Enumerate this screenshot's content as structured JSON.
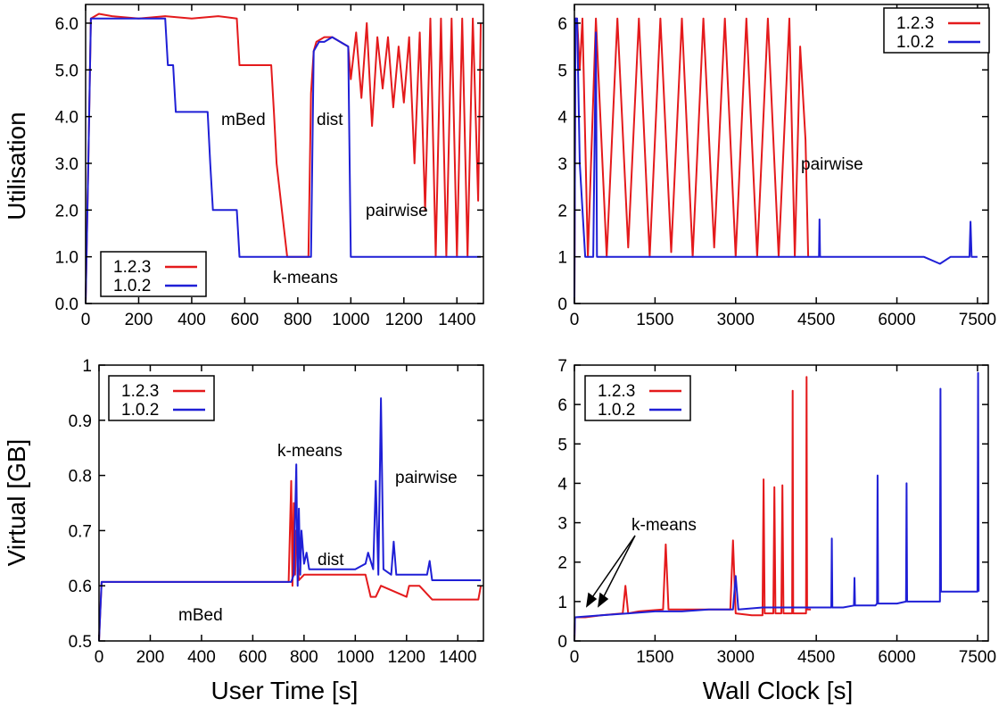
{
  "chart_data": [
    {
      "type": "line",
      "xlim": [
        0,
        1500
      ],
      "ylim": [
        0,
        6.4
      ],
      "xticks": [
        "0",
        "200",
        "400",
        "600",
        "800",
        "1000",
        "1200",
        "1400"
      ],
      "xtick_values": [
        0,
        200,
        400,
        600,
        800,
        1000,
        1200,
        1400
      ],
      "yticks": [
        "0.0",
        "1.0",
        "2.0",
        "3.0",
        "4.0",
        "5.0",
        "6.0"
      ],
      "ytick_values": [
        0,
        1,
        2,
        3,
        4,
        5,
        6
      ],
      "xlabel": "",
      "ylabel": "Utilisation",
      "legend": "bottom-left",
      "series": [
        {
          "name": "1.2.3",
          "color": "#e41a1c",
          "x": [
            0,
            10,
            20,
            50,
            100,
            200,
            300,
            400,
            500,
            570,
            580,
            650,
            700,
            710,
            720,
            740,
            760,
            780,
            800,
            820,
            840,
            850,
            860,
            870,
            900,
            930,
            960,
            990,
            1000,
            1020,
            1040,
            1060,
            1080,
            1100,
            1120,
            1140,
            1160,
            1180,
            1200,
            1220,
            1240,
            1260,
            1280,
            1300,
            1320,
            1340,
            1360,
            1380,
            1400,
            1420,
            1440,
            1460,
            1480,
            1490
          ],
          "y": [
            0,
            3,
            6.1,
            6.2,
            6.15,
            6.1,
            6.15,
            6.1,
            6.15,
            6.1,
            5.1,
            5.1,
            5.1,
            4.1,
            3.0,
            2.0,
            1.0,
            1.0,
            1.0,
            1.0,
            1.0,
            4.5,
            5.4,
            5.6,
            5.7,
            5.7,
            5.6,
            5.5,
            4.8,
            5.8,
            4.4,
            6.0,
            3.8,
            5.7,
            4.6,
            5.7,
            4.2,
            5.5,
            4.3,
            5.7,
            3.0,
            5.8,
            2.0,
            6.1,
            1.0,
            6.1,
            1.0,
            6.1,
            1.0,
            6.1,
            1.0,
            6.1,
            2.2,
            6.0
          ]
        },
        {
          "name": "1.0.2",
          "color": "#1f1fd6",
          "x": [
            0,
            10,
            20,
            50,
            100,
            200,
            300,
            310,
            330,
            340,
            460,
            470,
            480,
            570,
            580,
            700,
            800,
            850,
            860,
            880,
            900,
            930,
            960,
            990,
            1000,
            1100,
            1200,
            1300,
            1400,
            1490
          ],
          "y": [
            0,
            3,
            6.1,
            6.1,
            6.1,
            6.1,
            6.1,
            5.1,
            5.1,
            4.1,
            4.1,
            3.0,
            2.0,
            2.0,
            1.0,
            1.0,
            1.0,
            1.0,
            5.4,
            5.6,
            5.6,
            5.7,
            5.6,
            5.5,
            1.0,
            1.0,
            1.0,
            1.0,
            1.0,
            1.0
          ]
        }
      ],
      "annotations": [
        "mBed",
        "dist",
        "pairwise",
        "k-means"
      ]
    },
    {
      "type": "line",
      "xlim": [
        0,
        7700
      ],
      "ylim": [
        0,
        6.4
      ],
      "xticks": [
        "0",
        "1500",
        "3000",
        "4500",
        "6000",
        "7500"
      ],
      "xtick_values": [
        0,
        1500,
        3000,
        4500,
        6000,
        7500
      ],
      "yticks": [
        "0",
        "1",
        "2",
        "3",
        "4",
        "5",
        "6"
      ],
      "ytick_values": [
        0,
        1,
        2,
        3,
        4,
        5,
        6
      ],
      "xlabel": "",
      "ylabel": "",
      "legend": "top-right",
      "series": [
        {
          "name": "1.2.3",
          "color": "#e41a1c",
          "x": [
            0,
            20,
            50,
            100,
            150,
            250,
            400,
            600,
            800,
            1000,
            1200,
            1400,
            1600,
            1800,
            2000,
            2200,
            2400,
            2600,
            2800,
            3000,
            3200,
            3400,
            3600,
            3800,
            4000,
            4100,
            4200,
            4300,
            4350
          ],
          "y": [
            0,
            6.1,
            6.1,
            5.0,
            6.1,
            1.0,
            6.1,
            1.0,
            6.1,
            1.2,
            6.1,
            1.0,
            6.1,
            1.1,
            6.1,
            1.0,
            6.1,
            1.2,
            6.1,
            1.0,
            6.1,
            1.0,
            6.1,
            1.0,
            6.1,
            1.0,
            5.5,
            3.5,
            1.0
          ]
        },
        {
          "name": "1.0.2",
          "color": "#1f1fd6",
          "x": [
            0,
            20,
            50,
            100,
            200,
            350,
            400,
            420,
            450,
            1000,
            2000,
            3000,
            4000,
            4550,
            4560,
            4570,
            5000,
            6000,
            6500,
            6800,
            7000,
            7350,
            7370,
            7390,
            7500
          ],
          "y": [
            0,
            6.1,
            6.1,
            3.0,
            1.0,
            1.0,
            5.8,
            1.0,
            1.0,
            1.0,
            1.0,
            1.0,
            1.0,
            1.0,
            1.8,
            1.0,
            1.0,
            1.0,
            1.0,
            0.85,
            1.0,
            1.0,
            1.75,
            1.0,
            1.0
          ]
        }
      ],
      "annotations": [
        "pairwise"
      ]
    },
    {
      "type": "line",
      "xlim": [
        0,
        1500
      ],
      "ylim": [
        0.5,
        1.0
      ],
      "xticks": [
        "0",
        "200",
        "400",
        "600",
        "800",
        "1000",
        "1200",
        "1400"
      ],
      "xtick_values": [
        0,
        200,
        400,
        600,
        800,
        1000,
        1200,
        1400
      ],
      "yticks": [
        "0.5",
        "0.6",
        "0.7",
        "0.8",
        "0.9",
        "1"
      ],
      "ytick_values": [
        0.5,
        0.6,
        0.7,
        0.8,
        0.9,
        1.0
      ],
      "xlabel": "User Time [s]",
      "ylabel": "Virtual [GB]",
      "legend": "top-left",
      "series": [
        {
          "name": "1.2.3",
          "color": "#e41a1c",
          "x": [
            0,
            10,
            100,
            400,
            740,
            750,
            755,
            760,
            765,
            770,
            780,
            800,
            900,
            1000,
            1040,
            1060,
            1080,
            1100,
            1200,
            1210,
            1250,
            1300,
            1400,
            1480,
            1490
          ],
          "y": [
            0.5,
            0.607,
            0.607,
            0.607,
            0.607,
            0.79,
            0.6,
            0.75,
            0.62,
            0.7,
            0.61,
            0.62,
            0.62,
            0.62,
            0.62,
            0.58,
            0.58,
            0.6,
            0.58,
            0.6,
            0.6,
            0.575,
            0.575,
            0.575,
            0.6
          ]
        },
        {
          "name": "1.0.2",
          "color": "#1f1fd6",
          "x": [
            0,
            10,
            100,
            400,
            750,
            760,
            770,
            775,
            780,
            785,
            790,
            800,
            810,
            820,
            860,
            1000,
            1040,
            1050,
            1070,
            1080,
            1090,
            1100,
            1110,
            1140,
            1150,
            1160,
            1200,
            1280,
            1290,
            1300,
            1400,
            1490
          ],
          "y": [
            0.5,
            0.607,
            0.607,
            0.607,
            0.607,
            0.62,
            0.82,
            0.6,
            0.74,
            0.62,
            0.7,
            0.64,
            0.66,
            0.63,
            0.63,
            0.63,
            0.64,
            0.66,
            0.63,
            0.79,
            0.62,
            0.94,
            0.63,
            0.62,
            0.68,
            0.62,
            0.62,
            0.62,
            0.645,
            0.61,
            0.61,
            0.61
          ]
        }
      ],
      "annotations": [
        "k-means",
        "pairwise",
        "dist",
        "mBed"
      ]
    },
    {
      "type": "line",
      "xlim": [
        0,
        7700
      ],
      "ylim": [
        0,
        7
      ],
      "xticks": [
        "0",
        "1500",
        "3000",
        "4500",
        "6000",
        "7500"
      ],
      "xtick_values": [
        0,
        1500,
        3000,
        4500,
        6000,
        7500
      ],
      "yticks": [
        "0",
        "1",
        "2",
        "3",
        "4",
        "5",
        "6",
        "7"
      ],
      "ytick_values": [
        0,
        1,
        2,
        3,
        4,
        5,
        6,
        7
      ],
      "xlabel": "Wall Clock [s]",
      "ylabel": "",
      "legend": "top-left",
      "series": [
        {
          "name": "1.2.3",
          "color": "#e41a1c",
          "x": [
            0,
            10,
            200,
            500,
            900,
            950,
            1000,
            1200,
            1650,
            1700,
            1750,
            2000,
            2900,
            2950,
            3000,
            3300,
            3500,
            3520,
            3540,
            3700,
            3720,
            3740,
            3850,
            3870,
            3890,
            4050,
            4060,
            4070,
            4200,
            4310,
            4320,
            4330,
            4400
          ],
          "y": [
            0,
            0.6,
            0.6,
            0.65,
            0.7,
            1.4,
            0.7,
            0.75,
            0.8,
            2.45,
            0.8,
            0.8,
            0.8,
            2.55,
            0.7,
            0.65,
            0.65,
            4.1,
            0.7,
            0.7,
            3.9,
            0.7,
            0.7,
            3.95,
            0.7,
            0.7,
            6.35,
            0.7,
            0.7,
            0.7,
            6.7,
            0.8,
            0.8
          ]
        },
        {
          "name": "1.0.2",
          "color": "#1f1fd6",
          "x": [
            0,
            10,
            500,
            1000,
            1500,
            2000,
            2500,
            2950,
            3000,
            3050,
            3500,
            4000,
            4500,
            4780,
            4790,
            4800,
            5000,
            5200,
            5210,
            5220,
            5600,
            5630,
            5640,
            5650,
            6000,
            6170,
            6180,
            6190,
            6800,
            6810,
            6820,
            6830,
            7000,
            7500,
            7510,
            7520
          ],
          "y": [
            0,
            0.6,
            0.65,
            0.7,
            0.75,
            0.75,
            0.8,
            0.8,
            1.65,
            0.8,
            0.85,
            0.85,
            0.85,
            0.85,
            2.6,
            0.85,
            0.85,
            0.9,
            1.6,
            0.9,
            0.9,
            0.95,
            4.2,
            0.95,
            0.95,
            1.0,
            4.0,
            1.0,
            1.0,
            6.4,
            1.25,
            1.25,
            1.25,
            1.25,
            6.8,
            1.25
          ]
        }
      ],
      "annotations": [
        "k-means"
      ]
    }
  ]
}
